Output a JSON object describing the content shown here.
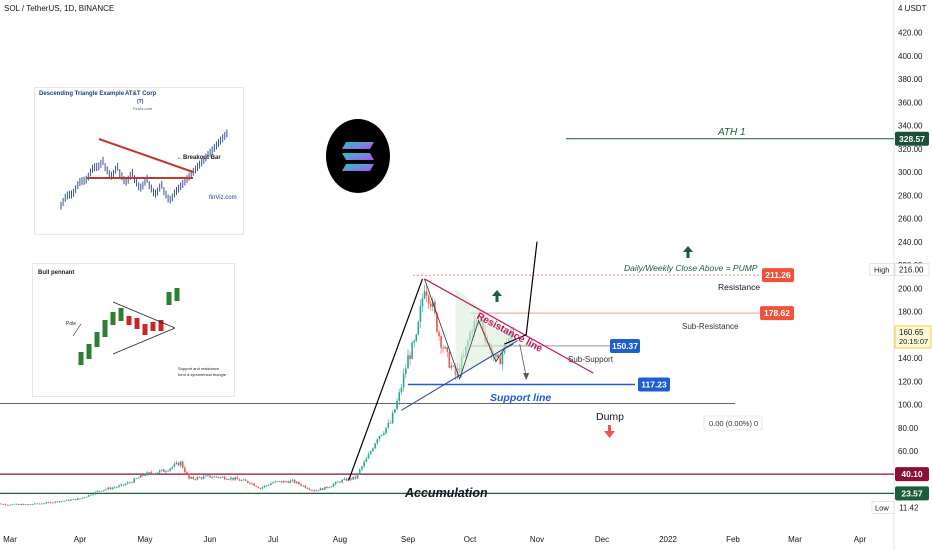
{
  "header": {
    "symbol": "SOL / TetherUS, 1D, BINANCE",
    "currency": "4 USDT"
  },
  "colors": {
    "up": "#26a69a",
    "down": "#ef5350",
    "price_label_red": "#f2513b",
    "price_label_blue": "#1e5fd0",
    "dark_red": "#8a0f3a",
    "dark_green": "#1b5e3c",
    "pink_line": "#c2185b"
  },
  "inset1": {
    "title": "Descending Triangle Example",
    "company": "AT&T Corp",
    "ticker": "(T)",
    "source": "Finviz.com",
    "annotation": "←Breakout Bar",
    "watermark": "finViz.com"
  },
  "inset2": {
    "title": "Bull pennant",
    "pole_label": "Pole",
    "caption_line1": "Support and resistance",
    "caption_line2": "form a symmetrical triangle"
  },
  "annotations": {
    "ath": "ATH 1",
    "pump": "Daily/Weekly Close Above = PUMP",
    "resistance": "Resistance",
    "sub_resistance": "Sub-Resistance",
    "resistance_line": "Resistance line",
    "sub_support": "Sub-Support",
    "support_line": "Support line",
    "dump": "Dump",
    "accumulation": "Accumulation",
    "measure": "0.00 (0.00%) 0"
  },
  "axis": {
    "high_label": "High",
    "low_label": "Low"
  },
  "price_tags": {
    "ath": "328.57",
    "resistance": "211.26",
    "sub_resistance": "178.62",
    "sub_support": "150.37",
    "support": "117.23",
    "high": "216.00",
    "current": "160.65",
    "countdown": "20:15:07",
    "red_level": "40.10",
    "green_level": "23.57",
    "low": "11.42"
  },
  "chart_data": {
    "type": "candlestick",
    "title": "SOL / TetherUS, 1D, BINANCE",
    "y_ticks": [
      420,
      400,
      380,
      360,
      340,
      320,
      300,
      280,
      260,
      240,
      220,
      200,
      180,
      160,
      140,
      120,
      100,
      80,
      60,
      40,
      20
    ],
    "y_tick_labels": [
      "420.00",
      "400.00",
      "380.00",
      "360.00",
      "340.00",
      "320.00",
      "300.00",
      "280.00",
      "260.00",
      "240.00",
      "220.00",
      "200.00",
      "180.00",
      "160.00",
      "140.00",
      "120.00",
      "100.00",
      "80.00",
      "60.00",
      "40.00",
      "20.00"
    ],
    "x_ticks": [
      {
        "label": "Mar",
        "date": "2021-03-01"
      },
      {
        "label": "Apr",
        "date": "2021-04-01"
      },
      {
        "label": "May",
        "date": "2021-05-01"
      },
      {
        "label": "Jun",
        "date": "2021-06-01"
      },
      {
        "label": "Jul",
        "date": "2021-07-01"
      },
      {
        "label": "Aug",
        "date": "2021-08-01"
      },
      {
        "label": "Sep",
        "date": "2021-09-01"
      },
      {
        "label": "Oct",
        "date": "2021-10-01"
      },
      {
        "label": "Nov",
        "date": "2021-11-01"
      },
      {
        "label": "Dec",
        "date": "2021-12-01"
      },
      {
        "label": "2022",
        "date": "2022-01-01"
      },
      {
        "label": "Feb",
        "date": "2022-02-01"
      },
      {
        "label": "Mar",
        "date": "2022-03-01"
      },
      {
        "label": "Apr",
        "date": "2022-04-01"
      }
    ],
    "levels": [
      {
        "name": "ATH 1",
        "price": 328.57
      },
      {
        "name": "Resistance",
        "price": 211.26
      },
      {
        "name": "Sub-Resistance",
        "price": 178.62
      },
      {
        "name": "Sub-Support",
        "price": 150.37
      },
      {
        "name": "Support line",
        "price": 117.23
      },
      {
        "name": "",
        "price": 40.1
      },
      {
        "name": "",
        "price": 23.57
      }
    ],
    "high": 216.0,
    "low": 11.42,
    "last_price": 160.65,
    "price_path": [
      [
        "2021-02-20",
        15
      ],
      [
        "2021-03-01",
        14
      ],
      [
        "2021-03-10",
        14
      ],
      [
        "2021-03-20",
        16
      ],
      [
        "2021-04-01",
        19
      ],
      [
        "2021-04-10",
        26
      ],
      [
        "2021-04-20",
        30
      ],
      [
        "2021-04-25",
        34
      ],
      [
        "2021-05-01",
        40
      ],
      [
        "2021-05-10",
        43
      ],
      [
        "2021-05-18",
        50
      ],
      [
        "2021-05-22",
        36
      ],
      [
        "2021-06-01",
        38
      ],
      [
        "2021-06-10",
        37
      ],
      [
        "2021-06-20",
        33
      ],
      [
        "2021-06-25",
        28
      ],
      [
        "2021-07-01",
        33
      ],
      [
        "2021-07-10",
        34
      ],
      [
        "2021-07-20",
        26
      ],
      [
        "2021-07-25",
        28
      ],
      [
        "2021-08-01",
        34
      ],
      [
        "2021-08-08",
        37
      ],
      [
        "2021-08-14",
        56
      ],
      [
        "2021-08-18",
        72
      ],
      [
        "2021-08-24",
        84
      ],
      [
        "2021-08-28",
        108
      ],
      [
        "2021-09-01",
        140
      ],
      [
        "2021-09-05",
        155
      ],
      [
        "2021-09-09",
        204
      ],
      [
        "2021-09-12",
        190
      ],
      [
        "2021-09-16",
        160
      ],
      [
        "2021-09-20",
        140
      ],
      [
        "2021-09-24",
        125
      ],
      [
        "2021-09-28",
        140
      ],
      [
        "2021-10-02",
        168
      ],
      [
        "2021-10-06",
        172
      ],
      [
        "2021-10-10",
        148
      ],
      [
        "2021-10-14",
        135
      ],
      [
        "2021-10-18",
        155
      ],
      [
        "2021-10-21",
        161
      ]
    ]
  }
}
